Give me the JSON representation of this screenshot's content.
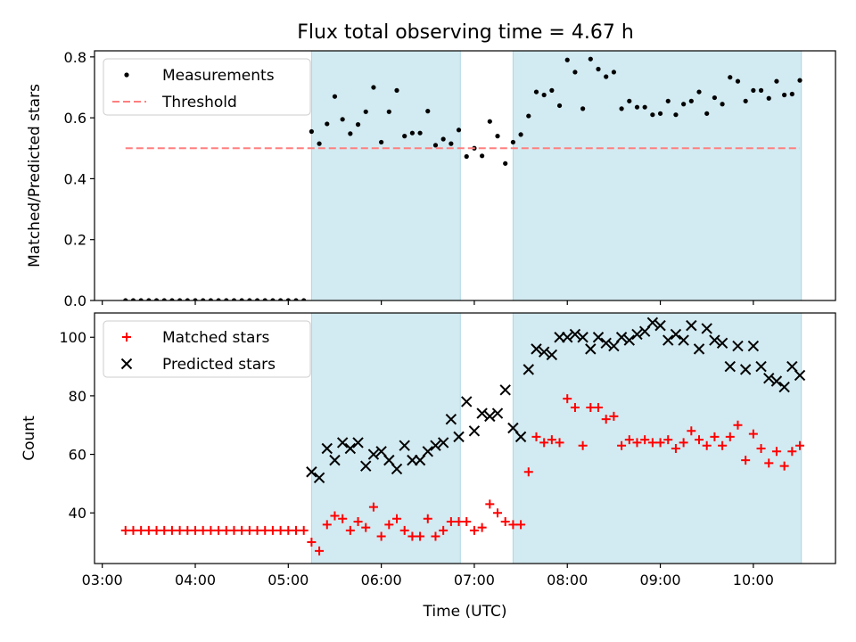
{
  "chart_data": [
    {
      "type": "scatter",
      "title": "Flux total observing time = 4.67 h",
      "xlabel": "",
      "ylabel": "Matched/Predicted stars",
      "xlim": [
        "02:55",
        "10:53"
      ],
      "ylim": [
        0,
        0.82
      ],
      "yticks": [
        0.0,
        0.2,
        0.4,
        0.6,
        0.8
      ],
      "ytick_labels": [
        "0.0",
        "0.2",
        "0.4",
        "0.6",
        "0.8"
      ],
      "legend_position": "top-left",
      "shaded_intervals": [
        [
          "05:15",
          "06:51"
        ],
        [
          "07:25",
          "10:31"
        ]
      ],
      "shade_color": "#add8e6",
      "series": [
        {
          "name": "Measurements",
          "kind": "points",
          "color": "#000000",
          "x": [
            "03:15",
            "03:20",
            "03:25",
            "03:30",
            "03:35",
            "03:40",
            "03:45",
            "03:50",
            "03:55",
            "04:00",
            "04:05",
            "04:10",
            "04:15",
            "04:20",
            "04:25",
            "04:30",
            "04:35",
            "04:40",
            "04:45",
            "04:50",
            "04:55",
            "05:00",
            "05:05",
            "05:10",
            "05:15",
            "05:20",
            "05:25",
            "05:30",
            "05:35",
            "05:40",
            "05:45",
            "05:50",
            "05:55",
            "06:00",
            "06:05",
            "06:10",
            "06:15",
            "06:20",
            "06:25",
            "06:30",
            "06:35",
            "06:40",
            "06:45",
            "06:50",
            "06:55",
            "07:00",
            "07:05",
            "07:10",
            "07:15",
            "07:20",
            "07:25",
            "07:30",
            "07:35",
            "07:40",
            "07:45",
            "07:50",
            "07:55",
            "08:00",
            "08:05",
            "08:10",
            "08:15",
            "08:20",
            "08:25",
            "08:30",
            "08:35",
            "08:40",
            "08:45",
            "08:50",
            "08:55",
            "09:00",
            "09:05",
            "09:10",
            "09:15",
            "09:20",
            "09:25",
            "09:30",
            "09:35",
            "09:40",
            "09:45",
            "09:50",
            "09:55",
            "10:00",
            "10:05",
            "10:10",
            "10:15",
            "10:20",
            "10:25",
            "10:30"
          ],
          "y": [
            0,
            0,
            0,
            0,
            0,
            0,
            0,
            0,
            0,
            0,
            0,
            0,
            0,
            0,
            0,
            0,
            0,
            0,
            0,
            0,
            0,
            0,
            0,
            0,
            0.555,
            0.515,
            0.58,
            0.67,
            0.595,
            0.548,
            0.578,
            0.62,
            0.7,
            0.52,
            0.62,
            0.69,
            0.54,
            0.55,
            0.55,
            0.622,
            0.51,
            0.53,
            0.515,
            0.56,
            0.473,
            0.5,
            0.475,
            0.588,
            0.54,
            0.45,
            0.52,
            0.545,
            0.606,
            0.685,
            0.675,
            0.69,
            0.64,
            0.79,
            0.75,
            0.63,
            0.793,
            0.76,
            0.735,
            0.75,
            0.63,
            0.655,
            0.635,
            0.635,
            0.61,
            0.614,
            0.655,
            0.61,
            0.645,
            0.655,
            0.685,
            0.614,
            0.666,
            0.645,
            0.733,
            0.72,
            0.655,
            0.69,
            0.69,
            0.664,
            0.72,
            0.675,
            0.678,
            0.723
          ]
        },
        {
          "name": "Threshold",
          "kind": "dashed-line",
          "color": "#ff7f7f",
          "x": [
            "03:15",
            "10:30"
          ],
          "y": [
            0.5,
            0.5
          ]
        }
      ]
    },
    {
      "type": "scatter",
      "title": "",
      "xlabel": "Time (UTC)",
      "ylabel": "Count",
      "xlim": [
        "02:55",
        "10:53"
      ],
      "ylim": [
        22.7,
        108.3
      ],
      "yticks": [
        40,
        60,
        80,
        100
      ],
      "ytick_labels": [
        "40",
        "60",
        "80",
        "100"
      ],
      "xticks": [
        "03:00",
        "04:00",
        "05:00",
        "06:00",
        "07:00",
        "08:00",
        "09:00",
        "10:00"
      ],
      "legend_position": "top-left",
      "shaded_intervals": [
        [
          "05:15",
          "06:51"
        ],
        [
          "07:25",
          "10:31"
        ]
      ],
      "shade_color": "#add8e6",
      "series": [
        {
          "name": "Matched stars",
          "marker": "plus",
          "color": "#ff0000",
          "x": [
            "03:15",
            "03:20",
            "03:25",
            "03:30",
            "03:35",
            "03:40",
            "03:45",
            "03:50",
            "03:55",
            "04:00",
            "04:05",
            "04:10",
            "04:15",
            "04:20",
            "04:25",
            "04:30",
            "04:35",
            "04:40",
            "04:45",
            "04:50",
            "04:55",
            "05:00",
            "05:05",
            "05:10",
            "05:15",
            "05:20",
            "05:25",
            "05:30",
            "05:35",
            "05:40",
            "05:45",
            "05:50",
            "05:55",
            "06:00",
            "06:05",
            "06:10",
            "06:15",
            "06:20",
            "06:25",
            "06:30",
            "06:35",
            "06:40",
            "06:45",
            "06:50",
            "06:55",
            "07:00",
            "07:05",
            "07:10",
            "07:15",
            "07:20",
            "07:25",
            "07:30",
            "07:35",
            "07:40",
            "07:45",
            "07:50",
            "07:55",
            "08:00",
            "08:05",
            "08:10",
            "08:15",
            "08:20",
            "08:25",
            "08:30",
            "08:35",
            "08:40",
            "08:45",
            "08:50",
            "08:55",
            "09:00",
            "09:05",
            "09:10",
            "09:15",
            "09:20",
            "09:25",
            "09:30",
            "09:35",
            "09:40",
            "09:45",
            "09:50",
            "09:55",
            "10:00",
            "10:05",
            "10:10",
            "10:15",
            "10:20",
            "10:25",
            "10:30"
          ],
          "y": [
            34,
            34,
            34,
            34,
            34,
            34,
            34,
            34,
            34,
            34,
            34,
            34,
            34,
            34,
            34,
            34,
            34,
            34,
            34,
            34,
            34,
            34,
            34,
            34,
            30,
            27,
            36,
            39,
            38,
            34,
            37,
            35,
            42,
            32,
            36,
            38,
            34,
            32,
            32,
            38,
            32,
            34,
            37,
            37,
            37,
            34,
            35,
            43,
            40,
            37,
            36,
            36,
            54,
            66,
            64,
            65,
            64,
            79,
            76,
            63,
            76,
            76,
            72,
            73,
            63,
            65,
            64,
            65,
            64,
            64,
            65,
            62,
            64,
            68,
            65,
            63,
            66,
            63,
            66,
            70,
            58,
            67,
            62,
            57,
            61,
            56,
            61,
            63
          ]
        },
        {
          "name": "Predicted stars",
          "marker": "x",
          "color": "#000000",
          "x": [
            "05:15",
            "05:20",
            "05:25",
            "05:30",
            "05:35",
            "05:40",
            "05:45",
            "05:50",
            "05:55",
            "06:00",
            "06:05",
            "06:10",
            "06:15",
            "06:20",
            "06:25",
            "06:30",
            "06:35",
            "06:40",
            "06:45",
            "06:50",
            "06:55",
            "07:00",
            "07:05",
            "07:10",
            "07:15",
            "07:20",
            "07:25",
            "07:30",
            "07:35",
            "07:40",
            "07:45",
            "07:50",
            "07:55",
            "08:00",
            "08:05",
            "08:10",
            "08:15",
            "08:20",
            "08:25",
            "08:30",
            "08:35",
            "08:40",
            "08:45",
            "08:50",
            "08:55",
            "09:00",
            "09:05",
            "09:10",
            "09:15",
            "09:20",
            "09:25",
            "09:30",
            "09:35",
            "09:40",
            "09:45",
            "09:50",
            "09:55",
            "10:00",
            "10:05",
            "10:10",
            "10:15",
            "10:20",
            "10:25",
            "10:30"
          ],
          "y": [
            54,
            52,
            62,
            58,
            64,
            62,
            64,
            56,
            60,
            61,
            58,
            55,
            63,
            58,
            58,
            61,
            63,
            64,
            72,
            66,
            78,
            68,
            74,
            73,
            74,
            82,
            69,
            66,
            89,
            96,
            95,
            94,
            100,
            100,
            101,
            100,
            96,
            100,
            98,
            97,
            100,
            99,
            101,
            102,
            105,
            104,
            99,
            101,
            99,
            104,
            96,
            103,
            99,
            98,
            90,
            97,
            89,
            97,
            90,
            86,
            85,
            83,
            90,
            87
          ]
        }
      ]
    }
  ]
}
